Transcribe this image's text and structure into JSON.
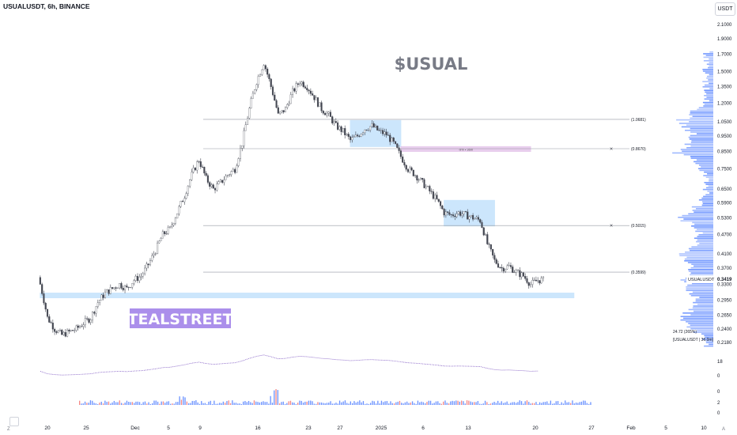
{
  "header": {
    "symbol_line": "USUALUSDT, 6h, BINANCE"
  },
  "currency_badge": "USDT",
  "chart_data": {
    "type": "candlestick",
    "title": "$USUAL",
    "watermark": "TEALSTREET",
    "symbol": "USUALUSDT",
    "timeframe": "6h",
    "exchange": "BINANCE",
    "y_scale": "log",
    "ylim": [
      0.2,
      2.1
    ],
    "y_ticks": [
      "2.1000",
      "1.9000",
      "1.7000",
      "1.5000",
      "1.3500",
      "1.2000",
      "1.0500",
      "0.9500",
      "0.8500",
      "0.7500",
      "0.6500",
      "0.5900",
      "0.5300",
      "0.4700",
      "0.4100",
      "0.3700",
      "0.3300",
      "0.2950",
      "0.2650",
      "0.2400",
      "0.2180"
    ],
    "x_ticks": [
      "20",
      "25",
      "Dec",
      "5",
      "9",
      "16",
      "23",
      "27",
      "2025",
      "6",
      "13",
      "20",
      "27",
      "Feb",
      "5",
      "10"
    ],
    "approx_daily_close": [
      [
        "2024-11-19",
        0.33
      ],
      [
        "2024-11-20",
        0.26
      ],
      [
        "2024-11-21",
        0.24
      ],
      [
        "2024-11-22",
        0.23
      ],
      [
        "2024-11-23",
        0.235
      ],
      [
        "2024-11-24",
        0.24
      ],
      [
        "2024-11-25",
        0.25
      ],
      [
        "2024-11-26",
        0.26
      ],
      [
        "2024-11-27",
        0.29
      ],
      [
        "2024-11-28",
        0.31
      ],
      [
        "2024-11-29",
        0.32
      ],
      [
        "2024-11-30",
        0.33
      ],
      [
        "2024-12-01",
        0.32
      ],
      [
        "2024-12-02",
        0.34
      ],
      [
        "2024-12-03",
        0.35
      ],
      [
        "2024-12-04",
        0.38
      ],
      [
        "2024-12-05",
        0.42
      ],
      [
        "2024-12-06",
        0.47
      ],
      [
        "2024-12-07",
        0.49
      ],
      [
        "2024-12-08",
        0.55
      ],
      [
        "2024-12-09",
        0.62
      ],
      [
        "2024-12-10",
        0.72
      ],
      [
        "2024-12-11",
        0.8
      ],
      [
        "2024-12-12",
        0.7
      ],
      [
        "2024-12-13",
        0.65
      ],
      [
        "2024-12-14",
        0.68
      ],
      [
        "2024-12-15",
        0.72
      ],
      [
        "2024-12-16",
        0.75
      ],
      [
        "2024-12-17",
        0.9
      ],
      [
        "2024-12-18",
        1.15
      ],
      [
        "2024-12-19",
        1.4
      ],
      [
        "2024-12-20",
        1.6
      ],
      [
        "2024-12-21",
        1.35
      ],
      [
        "2024-12-22",
        1.1
      ],
      [
        "2024-12-23",
        1.15
      ],
      [
        "2024-12-24",
        1.3
      ],
      [
        "2024-12-25",
        1.4
      ],
      [
        "2024-12-26",
        1.35
      ],
      [
        "2024-12-27",
        1.25
      ],
      [
        "2024-12-28",
        1.15
      ],
      [
        "2024-12-29",
        1.1
      ],
      [
        "2024-12-30",
        1.02
      ],
      [
        "2024-12-31",
        0.98
      ],
      [
        "2025-01-01",
        0.92
      ],
      [
        "2025-01-02",
        0.95
      ],
      [
        "2025-01-03",
        1.0
      ],
      [
        "2025-01-04",
        1.02
      ],
      [
        "2025-01-05",
        0.98
      ],
      [
        "2025-01-06",
        0.96
      ],
      [
        "2025-01-07",
        0.9
      ],
      [
        "2025-01-08",
        0.82
      ],
      [
        "2025-01-09",
        0.75
      ],
      [
        "2025-01-10",
        0.72
      ],
      [
        "2025-01-11",
        0.68
      ],
      [
        "2025-01-12",
        0.64
      ],
      [
        "2025-01-13",
        0.6
      ],
      [
        "2025-01-14",
        0.55
      ],
      [
        "2025-01-15",
        0.54
      ],
      [
        "2025-01-16",
        0.55
      ],
      [
        "2025-01-17",
        0.54
      ],
      [
        "2025-01-18",
        0.53
      ],
      [
        "2025-01-19",
        0.52
      ],
      [
        "2025-01-20",
        0.44
      ],
      [
        "2025-01-21",
        0.39
      ],
      [
        "2025-01-22",
        0.37
      ],
      [
        "2025-01-23",
        0.375
      ],
      [
        "2025-01-24",
        0.36
      ],
      [
        "2025-01-25",
        0.35
      ],
      [
        "2025-01-26",
        0.33
      ],
      [
        "2025-01-27",
        0.34
      ]
    ],
    "horizontal_levels": [
      {
        "label": "(1.0681)",
        "price": 1.0681,
        "marked_x": false
      },
      {
        "label": "(0.8670)",
        "price": 0.867,
        "marked_x": true
      },
      {
        "label": "(0.5015)",
        "price": 0.5015,
        "marked_x": true
      },
      {
        "label": "(0.3599)",
        "price": 0.3599,
        "marked_x": false
      }
    ],
    "zones": [
      {
        "color": "#90caf9",
        "from": "2024-11-19",
        "to": "2025-02-01",
        "price_low": 0.3,
        "price_high": 0.31
      },
      {
        "color": "#90caf9",
        "from": "2025-01-01",
        "to": "2025-01-08",
        "price_low": 0.88,
        "price_high": 1.06
      },
      {
        "color": "#ce93d8",
        "from": "2025-01-08",
        "to": "2025-01-26",
        "price_low": 0.85,
        "price_high": 0.88,
        "label": "-9% • 36m"
      },
      {
        "color": "#90caf9",
        "from": "2025-01-14",
        "to": "2025-01-21",
        "price_low": 0.5,
        "price_high": 0.6
      }
    ],
    "last_price": {
      "symbol": "USUALUSDT",
      "value": "0.3419"
    },
    "volume_profile_labels": [
      "24.72 (265%)",
      "[USUALUSDT | 36.0m]"
    ],
    "indicator_scale": [
      "18",
      "0"
    ],
    "volume_scale": [
      "0",
      "2",
      "0"
    ],
    "bottom_left_label": "Z",
    "bottom_right_label": "A"
  },
  "colors": {
    "up": "#26a69a",
    "down": "#ef5350",
    "candle": "#434651",
    "zone_blue": "#90caf9",
    "zone_purple": "#ce93d8",
    "watermark_bg": "#9c7be8",
    "profile": "#2962ff",
    "axis_text": "#131722",
    "grid_line": "#9598a1"
  }
}
